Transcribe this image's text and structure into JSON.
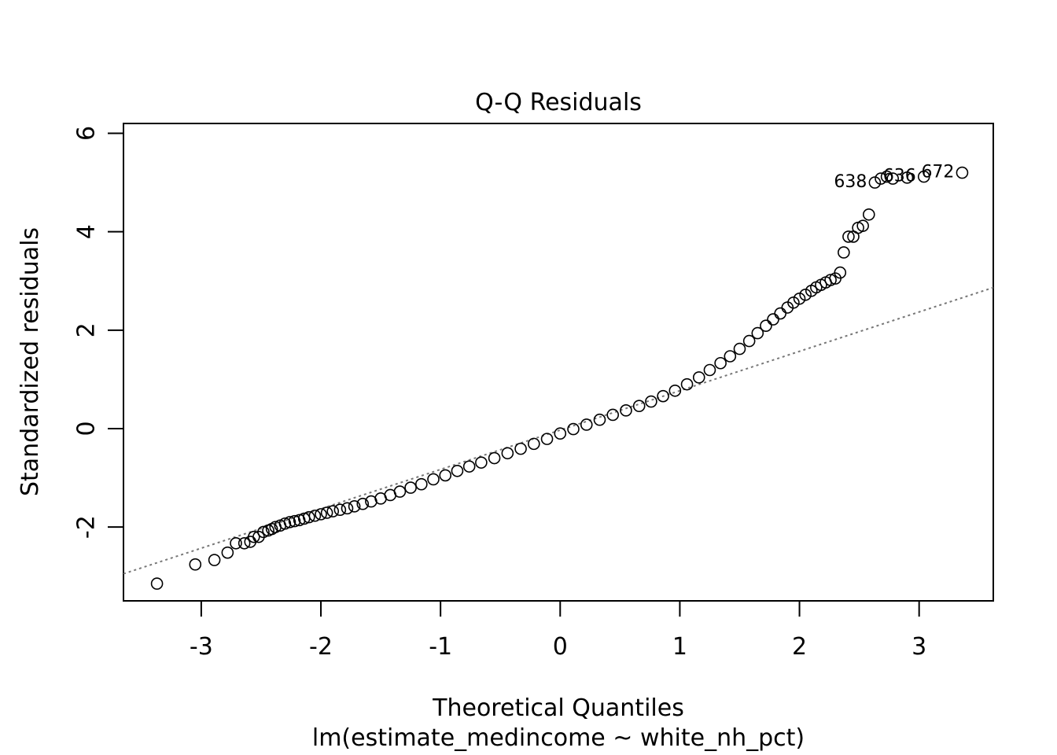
{
  "chart_data": {
    "type": "scatter",
    "title": "Q-Q Residuals",
    "xlabel": "Theoretical Quantiles",
    "subtitle": "lm(estimate_medincome ~ white_nh_pct)",
    "ylabel": "Standardized residuals",
    "xlim": [
      -3.65,
      3.62
    ],
    "ylim": [
      -3.5,
      6.2
    ],
    "xticks": [
      -3,
      -2,
      -1,
      0,
      1,
      2,
      3
    ],
    "xtick_labels": [
      "-3",
      "-2",
      "-1",
      "0",
      "1",
      "2",
      "3"
    ],
    "yticks": [
      -2,
      0,
      2,
      4,
      6
    ],
    "ytick_labels": [
      "-2",
      "0",
      "2",
      "4",
      "6"
    ],
    "grid": false,
    "reference_line": {
      "slope": 0.8,
      "intercept": -0.03,
      "style": "dotted",
      "color": "#777777"
    },
    "outlier_labels": [
      {
        "text": "672",
        "x": 3.36,
        "y": 5.2
      },
      {
        "text": "636",
        "x": 3.04,
        "y": 5.12
      },
      {
        "text": "638",
        "x": 2.63,
        "y": 5.0
      }
    ],
    "points": [
      [
        -3.37,
        -3.15
      ],
      [
        -3.05,
        -2.76
      ],
      [
        -2.89,
        -2.67
      ],
      [
        -2.78,
        -2.52
      ],
      [
        -2.71,
        -2.33
      ],
      [
        -2.64,
        -2.33
      ],
      [
        -2.59,
        -2.3
      ],
      [
        -2.56,
        -2.2
      ],
      [
        -2.52,
        -2.2
      ],
      [
        -2.48,
        -2.1
      ],
      [
        -2.44,
        -2.07
      ],
      [
        -2.41,
        -2.04
      ],
      [
        -2.38,
        -2.0
      ],
      [
        -2.34,
        -1.97
      ],
      [
        -2.3,
        -1.93
      ],
      [
        -2.26,
        -1.9
      ],
      [
        -2.22,
        -1.88
      ],
      [
        -2.18,
        -1.86
      ],
      [
        -2.14,
        -1.83
      ],
      [
        -2.1,
        -1.8
      ],
      [
        -2.05,
        -1.77
      ],
      [
        -2.0,
        -1.74
      ],
      [
        -1.95,
        -1.71
      ],
      [
        -1.9,
        -1.68
      ],
      [
        -1.84,
        -1.65
      ],
      [
        -1.78,
        -1.62
      ],
      [
        -1.72,
        -1.58
      ],
      [
        -1.65,
        -1.53
      ],
      [
        -1.58,
        -1.48
      ],
      [
        -1.5,
        -1.42
      ],
      [
        -1.42,
        -1.35
      ],
      [
        -1.34,
        -1.28
      ],
      [
        -1.25,
        -1.2
      ],
      [
        -1.16,
        -1.13
      ],
      [
        -1.06,
        -1.03
      ],
      [
        -0.96,
        -0.95
      ],
      [
        -0.86,
        -0.86
      ],
      [
        -0.76,
        -0.77
      ],
      [
        -0.66,
        -0.69
      ],
      [
        -0.55,
        -0.6
      ],
      [
        -0.44,
        -0.5
      ],
      [
        -0.33,
        -0.41
      ],
      [
        -0.22,
        -0.31
      ],
      [
        -0.11,
        -0.21
      ],
      [
        0.0,
        -0.1
      ],
      [
        0.11,
        -0.01
      ],
      [
        0.22,
        0.08
      ],
      [
        0.33,
        0.18
      ],
      [
        0.44,
        0.28
      ],
      [
        0.55,
        0.37
      ],
      [
        0.66,
        0.46
      ],
      [
        0.76,
        0.55
      ],
      [
        0.86,
        0.66
      ],
      [
        0.96,
        0.77
      ],
      [
        1.06,
        0.9
      ],
      [
        1.16,
        1.04
      ],
      [
        1.25,
        1.19
      ],
      [
        1.34,
        1.33
      ],
      [
        1.42,
        1.47
      ],
      [
        1.5,
        1.62
      ],
      [
        1.58,
        1.78
      ],
      [
        1.65,
        1.94
      ],
      [
        1.72,
        2.09
      ],
      [
        1.78,
        2.22
      ],
      [
        1.84,
        2.34
      ],
      [
        1.9,
        2.46
      ],
      [
        1.95,
        2.56
      ],
      [
        2.0,
        2.64
      ],
      [
        2.05,
        2.72
      ],
      [
        2.1,
        2.8
      ],
      [
        2.14,
        2.87
      ],
      [
        2.18,
        2.92
      ],
      [
        2.22,
        2.97
      ],
      [
        2.26,
        3.02
      ],
      [
        2.3,
        3.05
      ],
      [
        2.34,
        3.17
      ],
      [
        2.37,
        3.58
      ],
      [
        2.41,
        3.9
      ],
      [
        2.45,
        3.9
      ],
      [
        2.49,
        4.08
      ],
      [
        2.53,
        4.12
      ],
      [
        2.58,
        4.35
      ],
      [
        2.63,
        5.0
      ],
      [
        2.68,
        5.08
      ],
      [
        2.73,
        5.12
      ],
      [
        2.78,
        5.08
      ],
      [
        2.9,
        5.1
      ],
      [
        3.04,
        5.12
      ],
      [
        3.36,
        5.2
      ]
    ]
  }
}
